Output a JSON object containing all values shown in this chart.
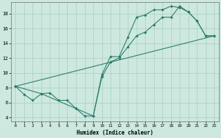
{
  "xlabel": "Humidex (Indice chaleur)",
  "bg_color": "#cce8df",
  "line_color": "#2a7a6a",
  "grid_color": "#aaccbb",
  "xlim": [
    -0.5,
    23.5
  ],
  "ylim": [
    3.5,
    19.5
  ],
  "xticks": [
    0,
    1,
    2,
    3,
    4,
    5,
    6,
    7,
    8,
    9,
    10,
    11,
    12,
    13,
    14,
    15,
    16,
    17,
    18,
    19,
    20,
    21,
    22,
    23
  ],
  "yticks": [
    4,
    6,
    8,
    10,
    12,
    14,
    16,
    18
  ],
  "line1_x": [
    0,
    1,
    2,
    3,
    4,
    5,
    6,
    7,
    8,
    9,
    10,
    11,
    12,
    13,
    14,
    15,
    16,
    17,
    18,
    19,
    20,
    21,
    22,
    23
  ],
  "line1_y": [
    8.2,
    7.1,
    6.3,
    7.2,
    7.3,
    6.3,
    6.3,
    5.2,
    4.2,
    4.2,
    9.8,
    12.2,
    12.2,
    14.8,
    17.5,
    17.8,
    18.5,
    18.5,
    19.0,
    18.8,
    18.2,
    17.0,
    15.0,
    15.0
  ],
  "line2_x": [
    0,
    3,
    7,
    9,
    10,
    11,
    12,
    13,
    14,
    15,
    16,
    17,
    18,
    19,
    20,
    21,
    22,
    23
  ],
  "line2_y": [
    8.2,
    7.2,
    5.2,
    4.2,
    9.5,
    11.5,
    12.0,
    13.5,
    15.0,
    15.5,
    16.5,
    17.5,
    17.5,
    19.0,
    18.2,
    17.0,
    15.0,
    15.0
  ],
  "line3_x": [
    0,
    23
  ],
  "line3_y": [
    8.2,
    15.0
  ]
}
